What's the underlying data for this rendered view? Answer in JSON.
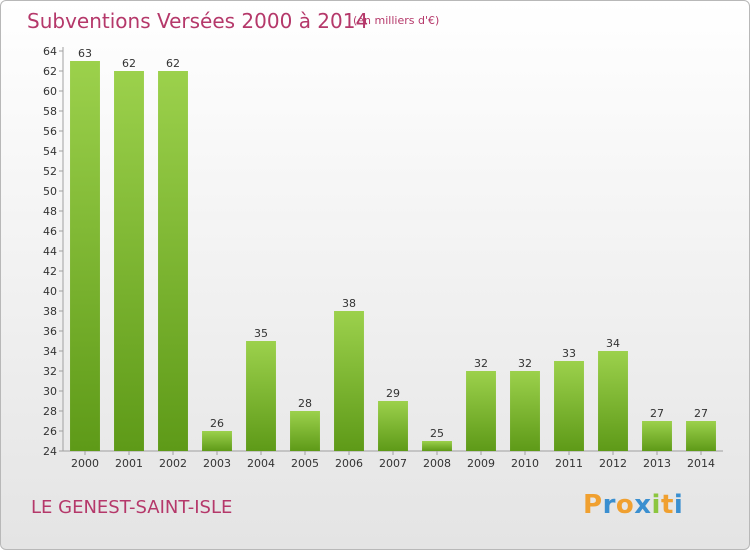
{
  "header": {
    "title": "Subventions Versées 2000 à 2014",
    "subtitle": "(en milliers d'€)"
  },
  "footer": {
    "city": "LE GENEST-SAINT-ISLE",
    "logo": {
      "text": "Proxiti",
      "letters": [
        {
          "char": "P",
          "color": "#f0a030"
        },
        {
          "char": "r",
          "color": "#3a8fd0"
        },
        {
          "char": "o",
          "color": "#f0a030"
        },
        {
          "char": "x",
          "color": "#3a8fd0"
        },
        {
          "char": "i",
          "color": "#8cc63f"
        },
        {
          "char": "t",
          "color": "#f0a030"
        },
        {
          "char": "i",
          "color": "#3a8fd0"
        }
      ]
    }
  },
  "chart_data": {
    "type": "bar",
    "categories": [
      "2000",
      "2001",
      "2002",
      "2003",
      "2004",
      "2005",
      "2006",
      "2007",
      "2008",
      "2009",
      "2010",
      "2011",
      "2012",
      "2013",
      "2014"
    ],
    "values": [
      63,
      62,
      62,
      26,
      35,
      28,
      38,
      29,
      25,
      32,
      32,
      33,
      34,
      27,
      27
    ],
    "ylim": [
      24,
      64
    ],
    "ytick_step": 2,
    "grid": false,
    "data_labels": true,
    "bar_color_top": "#9cd14c",
    "bar_color_bottom": "#5e9a18",
    "axis_color": "#a0a0a0",
    "label_color": "#333333"
  }
}
